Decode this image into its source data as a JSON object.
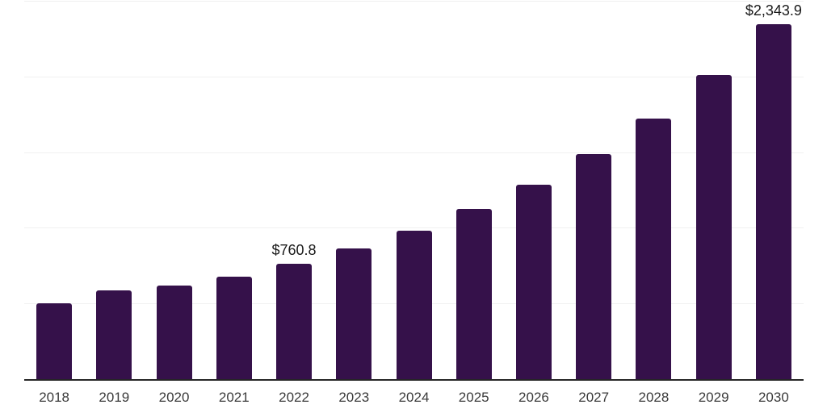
{
  "chart_data": {
    "type": "bar",
    "title": "",
    "categories": [
      "2018",
      "2019",
      "2020",
      "2021",
      "2022",
      "2023",
      "2024",
      "2025",
      "2026",
      "2027",
      "2028",
      "2029",
      "2030"
    ],
    "values": [
      501,
      586,
      618,
      675,
      760.8,
      862,
      982,
      1125,
      1286,
      1487,
      1723,
      2010,
      2343.9
    ],
    "data_labels": [
      null,
      null,
      null,
      null,
      "$760.8",
      null,
      null,
      null,
      null,
      null,
      null,
      null,
      "$2,343.9"
    ],
    "ylim": [
      0,
      2500
    ],
    "gridline_step": 500,
    "grid": true,
    "legend_position": "none",
    "y_axis_labels_visible": false,
    "colors": {
      "bar": "#35114A",
      "axis": "#262626",
      "gridline": "#f0f0f0",
      "data_label": "#1a1a1a",
      "tick_label": "#3a3a3a",
      "background": "#ffffff"
    }
  }
}
